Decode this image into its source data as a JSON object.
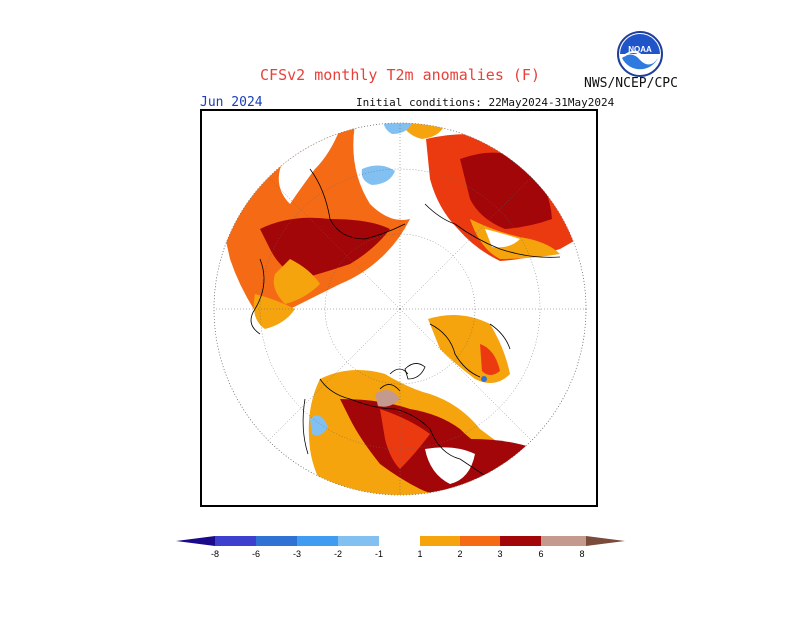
{
  "title": "CFSv2 monthly T2m anomalies (F)",
  "agency": "NWS/NCEP/CPC",
  "valid_month": "Jun 2024",
  "initial_conditions": "Initial conditions: 22May2024-31May2024",
  "logo": {
    "icon": "noaa-logo",
    "text": "NOAA"
  },
  "colorbar": {
    "ticks": [
      "-8",
      "-6",
      "-3",
      "-2",
      "-1",
      "1",
      "2",
      "3",
      "6",
      "8"
    ],
    "colors": {
      "lt_-8": "#1b0a8a",
      "-8_-6": "#3d3fcf",
      "-6_-3": "#2f72d4",
      "-3_-2": "#3f9cf0",
      "-2_-1": "#82c0f2",
      "-1_1": "#ffffff",
      "1_2": "#f6a40e",
      "2_3": "#f56a14",
      "3_6": "#ec3a10",
      "6_8": "#a30608",
      "gt_8": "#c49a8e",
      "gt_8_end": "#7a4a3a"
    }
  },
  "projection": "north-polar-stereographic"
}
